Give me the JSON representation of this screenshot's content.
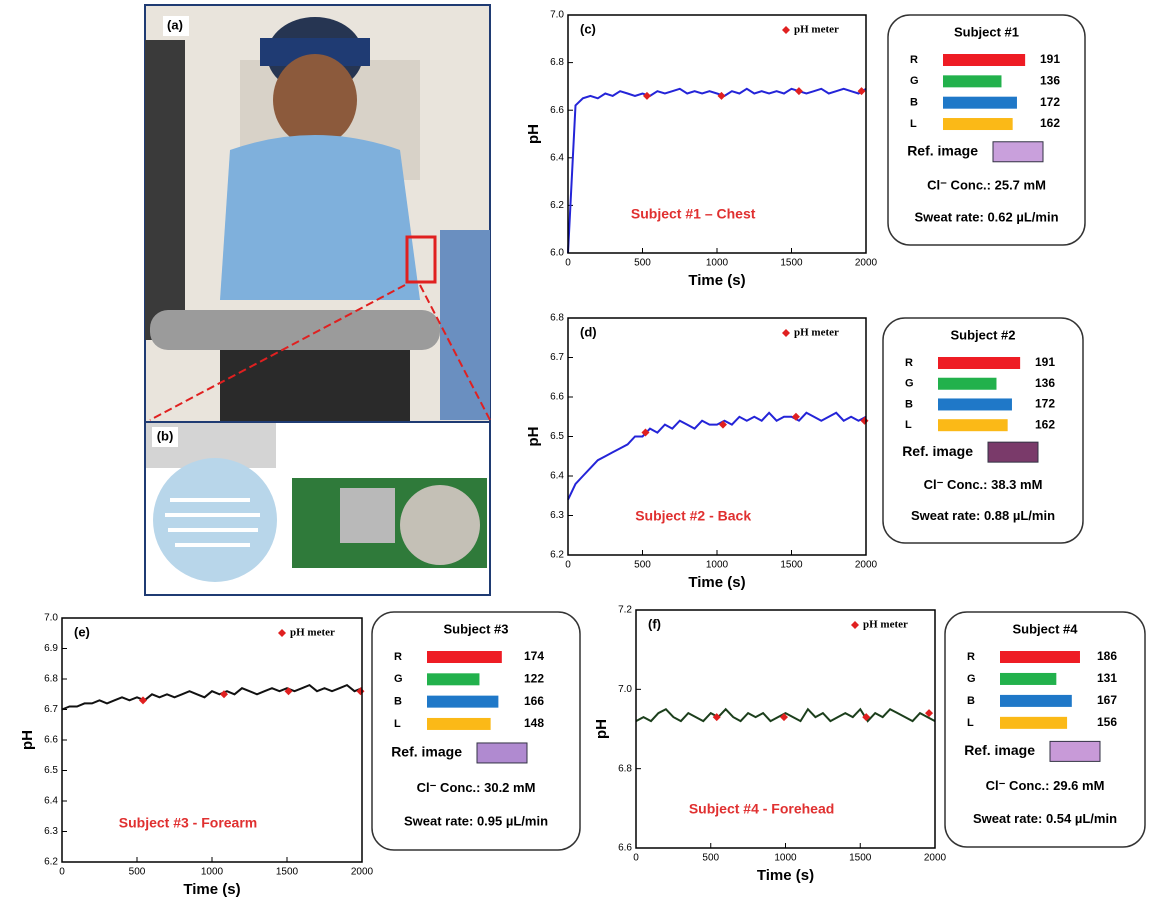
{
  "photo": {
    "label_a": "(a)",
    "label_b": "(b)"
  },
  "chart_data": [
    {
      "type": "line",
      "panel": "(c)",
      "x_label": "Time (s)",
      "y_label": "pH",
      "annotation": "Subject #1 – Chest",
      "xlim": [
        0,
        2000
      ],
      "xticks": [
        0,
        500,
        1000,
        1500,
        2000
      ],
      "ylim": [
        6.0,
        7.0
      ],
      "yticks": [
        {
          "value": 6.0,
          "label": "6.0"
        },
        6.2,
        6.4,
        6.6,
        6.8,
        {
          "value": 7.0,
          "label": "7.0"
        }
      ],
      "series": [
        {
          "color": "#2424d8",
          "x": [
            0,
            50,
            100,
            150,
            200,
            250,
            300,
            350,
            400,
            450,
            500,
            550,
            600,
            650,
            700,
            750,
            800,
            850,
            900,
            950,
            1000,
            1050,
            1100,
            1150,
            1200,
            1250,
            1300,
            1350,
            1400,
            1450,
            1500,
            1550,
            1600,
            1650,
            1700,
            1750,
            1800,
            1850,
            1900,
            1950,
            2000
          ],
          "values": [
            6.0,
            6.62,
            6.65,
            6.66,
            6.65,
            6.67,
            6.66,
            6.68,
            6.67,
            6.66,
            6.67,
            6.66,
            6.68,
            6.67,
            6.68,
            6.69,
            6.67,
            6.68,
            6.67,
            6.68,
            6.67,
            6.66,
            6.68,
            6.67,
            6.69,
            6.67,
            6.68,
            6.67,
            6.68,
            6.67,
            6.69,
            6.68,
            6.67,
            6.68,
            6.69,
            6.67,
            6.68,
            6.69,
            6.68,
            6.67,
            6.69
          ]
        },
        {
          "name": "pH meter",
          "color": "#e02020",
          "x": [
            530,
            1030,
            1550,
            1970
          ],
          "values": [
            6.66,
            6.66,
            6.68,
            6.68
          ]
        }
      ],
      "info": {
        "title": "Subject #1",
        "labels": [
          "R",
          "G",
          "B",
          "L"
        ],
        "values": [
          191,
          136,
          172,
          162
        ],
        "colors": [
          "#ee1c24",
          "#22b14c",
          "#1f78c8",
          "#fbb917"
        ],
        "ref_label": "Ref. image",
        "ref_color": "#c9a0dc",
        "conc": "Cl⁻ Conc.: 25.7 mM",
        "sweat": "Sweat rate: 0.62 µL/min"
      }
    },
    {
      "type": "line",
      "panel": "(d)",
      "x_label": "Time (s)",
      "y_label": "pH",
      "annotation": "Subject #2 - Back",
      "xlim": [
        0,
        2000
      ],
      "xticks": [
        0,
        500,
        1000,
        1500,
        2000
      ],
      "ylim": [
        6.2,
        6.8
      ],
      "yticks": [
        6.2,
        6.3,
        6.4,
        6.5,
        6.6,
        6.7,
        6.8
      ],
      "series": [
        {
          "color": "#2424d8",
          "x": [
            0,
            50,
            100,
            150,
            200,
            250,
            300,
            350,
            400,
            450,
            500,
            550,
            600,
            650,
            700,
            750,
            800,
            850,
            900,
            950,
            1000,
            1050,
            1100,
            1150,
            1200,
            1250,
            1300,
            1350,
            1400,
            1450,
            1500,
            1550,
            1600,
            1650,
            1700,
            1750,
            1800,
            1850,
            1900,
            1950,
            2000
          ],
          "values": [
            6.34,
            6.38,
            6.4,
            6.42,
            6.44,
            6.45,
            6.46,
            6.47,
            6.48,
            6.5,
            6.5,
            6.52,
            6.51,
            6.53,
            6.52,
            6.54,
            6.53,
            6.52,
            6.54,
            6.53,
            6.53,
            6.54,
            6.53,
            6.55,
            6.54,
            6.55,
            6.54,
            6.56,
            6.54,
            6.55,
            6.55,
            6.54,
            6.56,
            6.55,
            6.54,
            6.55,
            6.56,
            6.54,
            6.55,
            6.54,
            6.55
          ]
        },
        {
          "name": "pH meter",
          "color": "#e02020",
          "x": [
            520,
            1040,
            1530,
            1990
          ],
          "values": [
            6.51,
            6.53,
            6.55,
            6.54
          ]
        }
      ],
      "info": {
        "title": "Subject #2",
        "labels": [
          "R",
          "G",
          "B",
          "L"
        ],
        "values": [
          191,
          136,
          172,
          162
        ],
        "colors": [
          "#ee1c24",
          "#22b14c",
          "#1f78c8",
          "#fbb917"
        ],
        "ref_label": "Ref. image",
        "ref_color": "#7a3a6a",
        "conc": "Cl⁻ Conc.: 38.3 mM",
        "sweat": "Sweat rate: 0.88 µL/min"
      }
    },
    {
      "type": "line",
      "panel": "(e)",
      "x_label": "Time (s)",
      "y_label": "pH",
      "annotation": "Subject #3 - Forearm",
      "xlim": [
        0,
        2000
      ],
      "xticks": [
        0,
        500,
        1000,
        1500,
        2000
      ],
      "ylim": [
        6.2,
        7.0
      ],
      "yticks": [
        6.2,
        6.3,
        6.4,
        6.5,
        6.6,
        6.7,
        6.8,
        6.9,
        {
          "value": 7.0,
          "label": "7.0"
        }
      ],
      "series": [
        {
          "color": "#111111",
          "x": [
            0,
            50,
            100,
            150,
            200,
            250,
            300,
            350,
            400,
            450,
            500,
            550,
            600,
            650,
            700,
            750,
            800,
            850,
            900,
            950,
            1000,
            1050,
            1100,
            1150,
            1200,
            1250,
            1300,
            1350,
            1400,
            1450,
            1500,
            1550,
            1600,
            1650,
            1700,
            1750,
            1800,
            1850,
            1900,
            1950,
            2000
          ],
          "values": [
            6.7,
            6.71,
            6.71,
            6.72,
            6.72,
            6.73,
            6.72,
            6.73,
            6.74,
            6.73,
            6.74,
            6.73,
            6.75,
            6.74,
            6.75,
            6.74,
            6.75,
            6.76,
            6.75,
            6.74,
            6.76,
            6.75,
            6.76,
            6.75,
            6.77,
            6.76,
            6.75,
            6.76,
            6.77,
            6.76,
            6.77,
            6.76,
            6.77,
            6.78,
            6.76,
            6.77,
            6.76,
            6.77,
            6.78,
            6.76,
            6.77
          ]
        },
        {
          "name": "pH meter",
          "color": "#e02020",
          "x": [
            540,
            1080,
            1510,
            1990
          ],
          "values": [
            6.73,
            6.75,
            6.76,
            6.76
          ]
        }
      ],
      "info": {
        "title": "Subject #3",
        "labels": [
          "R",
          "G",
          "B",
          "L"
        ],
        "values": [
          174,
          122,
          166,
          148
        ],
        "colors": [
          "#ee1c24",
          "#22b14c",
          "#1f78c8",
          "#fbb917"
        ],
        "ref_label": "Ref. image",
        "ref_color": "#b08ad0",
        "conc": "Cl⁻ Conc.: 30.2 mM",
        "sweat": "Sweat rate: 0.95 µL/min"
      }
    },
    {
      "type": "line",
      "panel": "(f)",
      "x_label": "Time (s)",
      "y_label": "pH",
      "annotation": "Subject #4 - Forehead",
      "xlim": [
        0,
        2000
      ],
      "xticks": [
        0,
        500,
        1000,
        1500,
        2000
      ],
      "ylim": [
        6.6,
        7.2
      ],
      "yticks": [
        6.6,
        6.8,
        {
          "value": 7.0,
          "label": "7.0"
        },
        7.2
      ],
      "series": [
        {
          "color": "#1c3f1c",
          "x": [
            0,
            50,
            100,
            150,
            200,
            250,
            300,
            350,
            400,
            450,
            500,
            550,
            600,
            650,
            700,
            750,
            800,
            850,
            900,
            950,
            1000,
            1050,
            1100,
            1150,
            1200,
            1250,
            1300,
            1350,
            1400,
            1450,
            1500,
            1550,
            1600,
            1650,
            1700,
            1750,
            1800,
            1850,
            1900,
            1950,
            2000
          ],
          "values": [
            6.92,
            6.93,
            6.92,
            6.94,
            6.95,
            6.93,
            6.92,
            6.94,
            6.93,
            6.92,
            6.94,
            6.93,
            6.95,
            6.93,
            6.92,
            6.94,
            6.93,
            6.94,
            6.92,
            6.93,
            6.94,
            6.93,
            6.92,
            6.95,
            6.93,
            6.94,
            6.92,
            6.93,
            6.94,
            6.93,
            6.95,
            6.92,
            6.94,
            6.93,
            6.95,
            6.94,
            6.93,
            6.92,
            6.94,
            6.93,
            6.92
          ]
        },
        {
          "name": "pH meter",
          "color": "#e02020",
          "x": [
            540,
            990,
            1540,
            1960
          ],
          "values": [
            6.93,
            6.93,
            6.93,
            6.94
          ]
        }
      ],
      "info": {
        "title": "Subject #4",
        "labels": [
          "R",
          "G",
          "B",
          "L"
        ],
        "values": [
          186,
          131,
          167,
          156
        ],
        "colors": [
          "#ee1c24",
          "#22b14c",
          "#1f78c8",
          "#fbb917"
        ],
        "ref_label": "Ref. image",
        "ref_color": "#c89ad8",
        "conc": "Cl⁻ Conc.: 29.6 mM",
        "sweat": "Sweat rate: 0.54 µL/min"
      }
    }
  ]
}
